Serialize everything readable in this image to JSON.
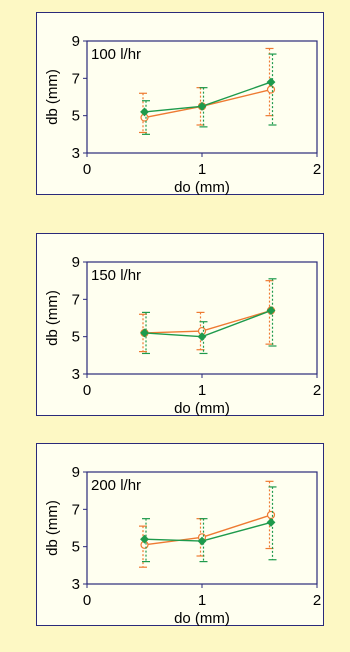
{
  "colors": {
    "green": "#1e9a4c",
    "orange": "#ee7a32",
    "frame": "#2a2a7a",
    "bg": "#fdf8c4",
    "panel": "#fffff0"
  },
  "chart_data": [
    {
      "type": "scatter",
      "annotation": "100 l/hr",
      "xlabel": "do (mm)",
      "ylabel": "db (mm)",
      "xlim": [
        0,
        2
      ],
      "ylim": [
        3,
        9
      ],
      "xticks": [
        0,
        1,
        2
      ],
      "yticks": [
        3,
        5,
        7,
        9
      ],
      "grid": false,
      "series": [
        {
          "color": "green",
          "marker": "diamond",
          "x": [
            0.5,
            1.0,
            1.6
          ],
          "y": [
            5.2,
            5.5,
            6.8
          ],
          "yerr_low": [
            4.0,
            4.4,
            4.5
          ],
          "yerr_high": [
            5.8,
            6.5,
            8.3
          ]
        },
        {
          "color": "orange",
          "marker": "circle",
          "x": [
            0.5,
            1.0,
            1.6
          ],
          "y": [
            4.9,
            5.5,
            6.4
          ],
          "yerr_low": [
            4.1,
            4.5,
            5.0
          ],
          "yerr_high": [
            6.2,
            6.5,
            8.6
          ]
        }
      ]
    },
    {
      "type": "scatter",
      "annotation": "150 l/hr",
      "xlabel": "do (mm)",
      "ylabel": "db (mm)",
      "xlim": [
        0,
        2
      ],
      "ylim": [
        3,
        9
      ],
      "xticks": [
        0,
        1,
        2
      ],
      "yticks": [
        3,
        5,
        7,
        9
      ],
      "grid": false,
      "series": [
        {
          "color": "green",
          "marker": "diamond",
          "x": [
            0.5,
            1.0,
            1.6
          ],
          "y": [
            5.2,
            5.0,
            6.4
          ],
          "yerr_low": [
            4.1,
            4.1,
            4.5
          ],
          "yerr_high": [
            6.3,
            5.8,
            8.1
          ]
        },
        {
          "color": "orange",
          "marker": "circle",
          "x": [
            0.5,
            1.0,
            1.6
          ],
          "y": [
            5.2,
            5.3,
            6.4
          ],
          "yerr_low": [
            4.2,
            4.3,
            4.6
          ],
          "yerr_high": [
            6.2,
            6.3,
            8.0
          ]
        }
      ]
    },
    {
      "type": "scatter",
      "annotation": "200 l/hr",
      "xlabel": "do (mm)",
      "ylabel": "db (mm)",
      "xlim": [
        0,
        2
      ],
      "ylim": [
        3,
        9
      ],
      "xticks": [
        0,
        1,
        2
      ],
      "yticks": [
        3,
        5,
        7,
        9
      ],
      "grid": false,
      "series": [
        {
          "color": "green",
          "marker": "diamond",
          "x": [
            0.5,
            1.0,
            1.6
          ],
          "y": [
            5.4,
            5.3,
            6.3
          ],
          "yerr_low": [
            4.2,
            4.2,
            4.3
          ],
          "yerr_high": [
            6.5,
            6.5,
            8.2
          ]
        },
        {
          "color": "orange",
          "marker": "circle",
          "x": [
            0.5,
            1.0,
            1.6
          ],
          "y": [
            5.1,
            5.5,
            6.7
          ],
          "yerr_low": [
            3.9,
            4.5,
            4.9
          ],
          "yerr_high": [
            6.1,
            6.5,
            8.5
          ]
        }
      ]
    }
  ]
}
